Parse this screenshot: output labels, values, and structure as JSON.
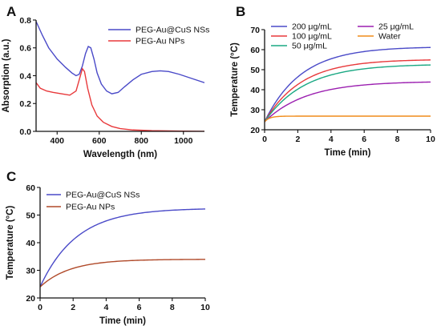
{
  "chart_data": [
    {
      "panel": "A",
      "type": "line",
      "xlabel": "Wavelength (nm)",
      "ylabel": "Absorption (a.u.)",
      "xlim": [
        300,
        1100
      ],
      "ylim": [
        0,
        0.8
      ],
      "xticks": [
        400,
        600,
        800,
        1000
      ],
      "yticks": [
        0.0,
        0.2,
        0.4,
        0.6,
        0.8
      ],
      "ytick_labels": [
        "0.0",
        "0.2",
        "0.4",
        "0.6",
        "0.8"
      ],
      "legend": "top-right",
      "series": [
        {
          "name": "PEG-Au@CuS NSs",
          "color": "#4a4ac8",
          "points": [
            [
              300,
              0.79
            ],
            [
              330,
              0.69
            ],
            [
              360,
              0.6
            ],
            [
              400,
              0.52
            ],
            [
              440,
              0.46
            ],
            [
              470,
              0.42
            ],
            [
              490,
              0.4
            ],
            [
              505,
              0.41
            ],
            [
              520,
              0.47
            ],
            [
              535,
              0.56
            ],
            [
              548,
              0.61
            ],
            [
              560,
              0.6
            ],
            [
              575,
              0.52
            ],
            [
              590,
              0.42
            ],
            [
              610,
              0.34
            ],
            [
              635,
              0.29
            ],
            [
              660,
              0.27
            ],
            [
              690,
              0.28
            ],
            [
              720,
              0.32
            ],
            [
              760,
              0.37
            ],
            [
              800,
              0.41
            ],
            [
              850,
              0.43
            ],
            [
              890,
              0.435
            ],
            [
              930,
              0.43
            ],
            [
              980,
              0.41
            ],
            [
              1040,
              0.38
            ],
            [
              1100,
              0.35
            ]
          ]
        },
        {
          "name": "PEG-Au NPs",
          "color": "#e8393b",
          "points": [
            [
              300,
              0.35
            ],
            [
              320,
              0.31
            ],
            [
              350,
              0.29
            ],
            [
              380,
              0.28
            ],
            [
              420,
              0.27
            ],
            [
              460,
              0.26
            ],
            [
              490,
              0.29
            ],
            [
              505,
              0.37
            ],
            [
              520,
              0.45
            ],
            [
              530,
              0.43
            ],
            [
              545,
              0.31
            ],
            [
              565,
              0.19
            ],
            [
              590,
              0.11
            ],
            [
              620,
              0.065
            ],
            [
              660,
              0.035
            ],
            [
              700,
              0.02
            ],
            [
              760,
              0.01
            ],
            [
              850,
              0.005
            ],
            [
              1000,
              0.002
            ],
            [
              1100,
              0.0
            ]
          ]
        }
      ]
    },
    {
      "panel": "B",
      "type": "line",
      "xlabel": "Time (min)",
      "ylabel": "Temperature (°C)",
      "xlim": [
        0,
        10
      ],
      "ylim": [
        20,
        70
      ],
      "xticks": [
        0,
        2,
        4,
        6,
        8,
        10
      ],
      "yticks": [
        20,
        30,
        40,
        50,
        60,
        70
      ],
      "legend": "top-left",
      "series": [
        {
          "name": "200 μg/mL",
          "color": "#4a4ac8",
          "t0": 24,
          "tmax": 61.5,
          "tau": 2.2
        },
        {
          "name": "100 μg/mL",
          "color": "#e8393b",
          "t0": 24,
          "tmax": 55.2,
          "tau": 2.2
        },
        {
          "name": "50 μg/mL",
          "color": "#1aa883",
          "t0": 24,
          "tmax": 52.8,
          "tau": 2.4
        },
        {
          "name": "25 μg/mL",
          "color": "#9b1fb0",
          "t0": 24,
          "tmax": 44.2,
          "tau": 2.5
        },
        {
          "name": "Water",
          "color": "#f08c1a",
          "t0": 24,
          "tmax": 26.8,
          "tau": 0.3
        }
      ]
    },
    {
      "panel": "C",
      "type": "line",
      "xlabel": "Time (min)",
      "ylabel": "Temperature (°C)",
      "xlim": [
        0,
        10
      ],
      "ylim": [
        20,
        60
      ],
      "xticks": [
        0,
        2,
        4,
        6,
        8,
        10
      ],
      "yticks": [
        20,
        30,
        40,
        50,
        60
      ],
      "legend": "top-left",
      "series": [
        {
          "name": "PEG-Au@CuS NSs",
          "color": "#4a4ac8",
          "t0": 24,
          "tmax": 52.5,
          "tau": 2.2
        },
        {
          "name": "PEG-Au NPs",
          "color": "#b04a2a",
          "t0": 24,
          "tmax": 34.0,
          "tau": 1.8
        }
      ]
    }
  ]
}
